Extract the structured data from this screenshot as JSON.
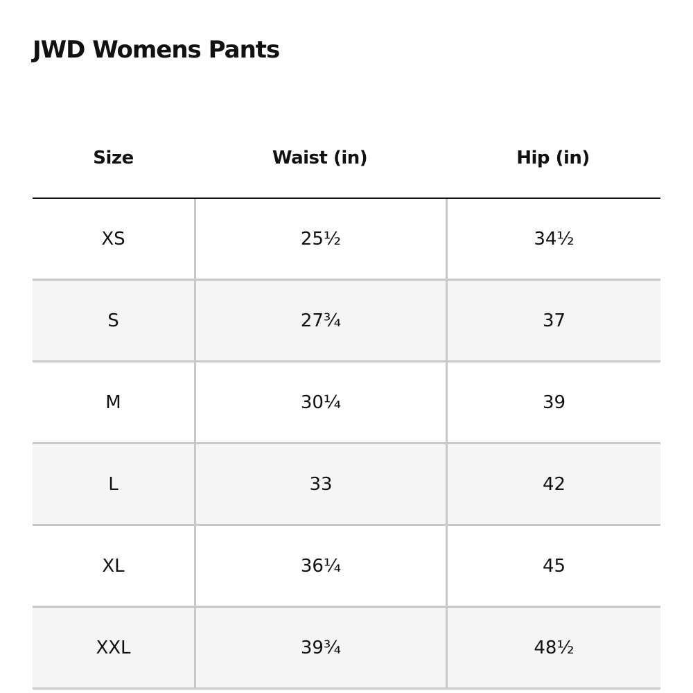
{
  "title": "JWD Womens Pants",
  "table": {
    "headers": [
      "Size",
      "Waist (in)",
      "Hip (in)"
    ],
    "rows": [
      [
        "XS",
        "25½",
        "34½"
      ],
      [
        "S",
        "27¾",
        "37"
      ],
      [
        "M",
        "30¼",
        "39"
      ],
      [
        "L",
        "33",
        "42"
      ],
      [
        "XL",
        "36¼",
        "45"
      ],
      [
        "XXL",
        "39¾",
        "48½"
      ]
    ]
  }
}
